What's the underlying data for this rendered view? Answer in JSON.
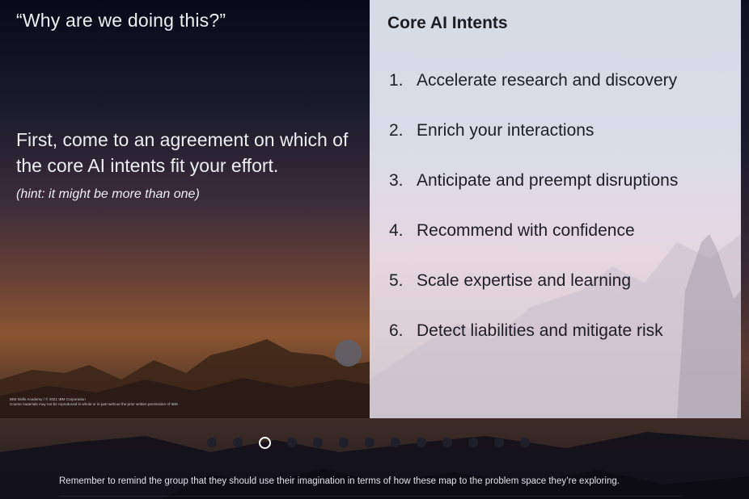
{
  "slide": {
    "quote_title": "“Why are we doing this?”",
    "instruction": "First, come to an agreement on which of the core AI intents fit your effort.",
    "hint": "(hint: it might be more than one)",
    "footer_line1": "IBM Skills Academy / © 2021 IBM Corporation",
    "footer_line2": "Course materials may not be reproduced in whole or in part without the prior written permission of IBM."
  },
  "panel": {
    "title": "Core AI Intents",
    "intents": [
      {
        "num": "1.",
        "label": "Accelerate research and discovery"
      },
      {
        "num": "2.",
        "label": "Enrich your interactions"
      },
      {
        "num": "3.",
        "label": "Anticipate and preempt disruptions"
      },
      {
        "num": "4.",
        "label": "Recommend with confidence"
      },
      {
        "num": "5.",
        "label": "Scale expertise and learning"
      },
      {
        "num": "6.",
        "label": "Detect liabilities and mitigate risk"
      }
    ]
  },
  "pagination": {
    "total": 13,
    "current": 3
  },
  "notes": "Remember to remind the group that they should use their imagination in terms of how these map to the problem space they’re exploring.",
  "colors": {
    "accent": "#ffffff",
    "panel_bg": "#d9dbe6",
    "dot_inactive": "#1e1f28"
  }
}
